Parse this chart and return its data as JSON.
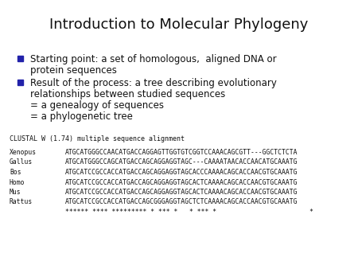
{
  "title": "Introduction to Molecular Phylogeny",
  "title_fontsize": 13,
  "background_color": "#ffffff",
  "bullet_color": "#2222aa",
  "bullet1_line1": "Starting point: a set of homologous,  aligned DNA or",
  "bullet1_line2": "protein sequences",
  "bullet2_line1": "Result of the process: a tree describing evolutionary",
  "bullet2_line2": "relationships between studied sequences",
  "bullet2_line3": "= a genealogy of sequences",
  "bullet2_line4": "= a phylogenetic tree",
  "clustal_header": "CLUSTAL W (1.74) multiple sequence alignment",
  "sequences": [
    [
      "Xenopus",
      "ATGCATGGGCCAACATGACCAGGAGTTGGTGTCGGTCCAAACAGCGTT---GGCTCTCTA"
    ],
    [
      "Gallus",
      "ATGCATGGGCCAGCATGACCAGCAGGAGGTAGC---CAAAATAACACCAACATGCAAATG"
    ],
    [
      "Bos",
      "ATGCATCCGCCACCATGACCAGCAGGAGGTAGCACCCAAAACAGCACCAACGTGCAAATG"
    ],
    [
      "Homo",
      "ATGCATCCGCCACCATGACCAGCAGGAGGTAGCACTCAAAACAGCACCAACGTGCAAATG"
    ],
    [
      "Mus",
      "ATGCATCCGCCACCATGACCAGCAGGAGGTAGCACTCAAAACAGCACCAACGTGCAAATG"
    ],
    [
      "Rattus",
      "ATGCATCCGCCACCATGACCAGCGGGAGGTAGCTCTCAAAACAGCACCAACGTGCAAATG"
    ]
  ],
  "consensus": "****** **** ********* * *** *   * *** *                        *"
}
